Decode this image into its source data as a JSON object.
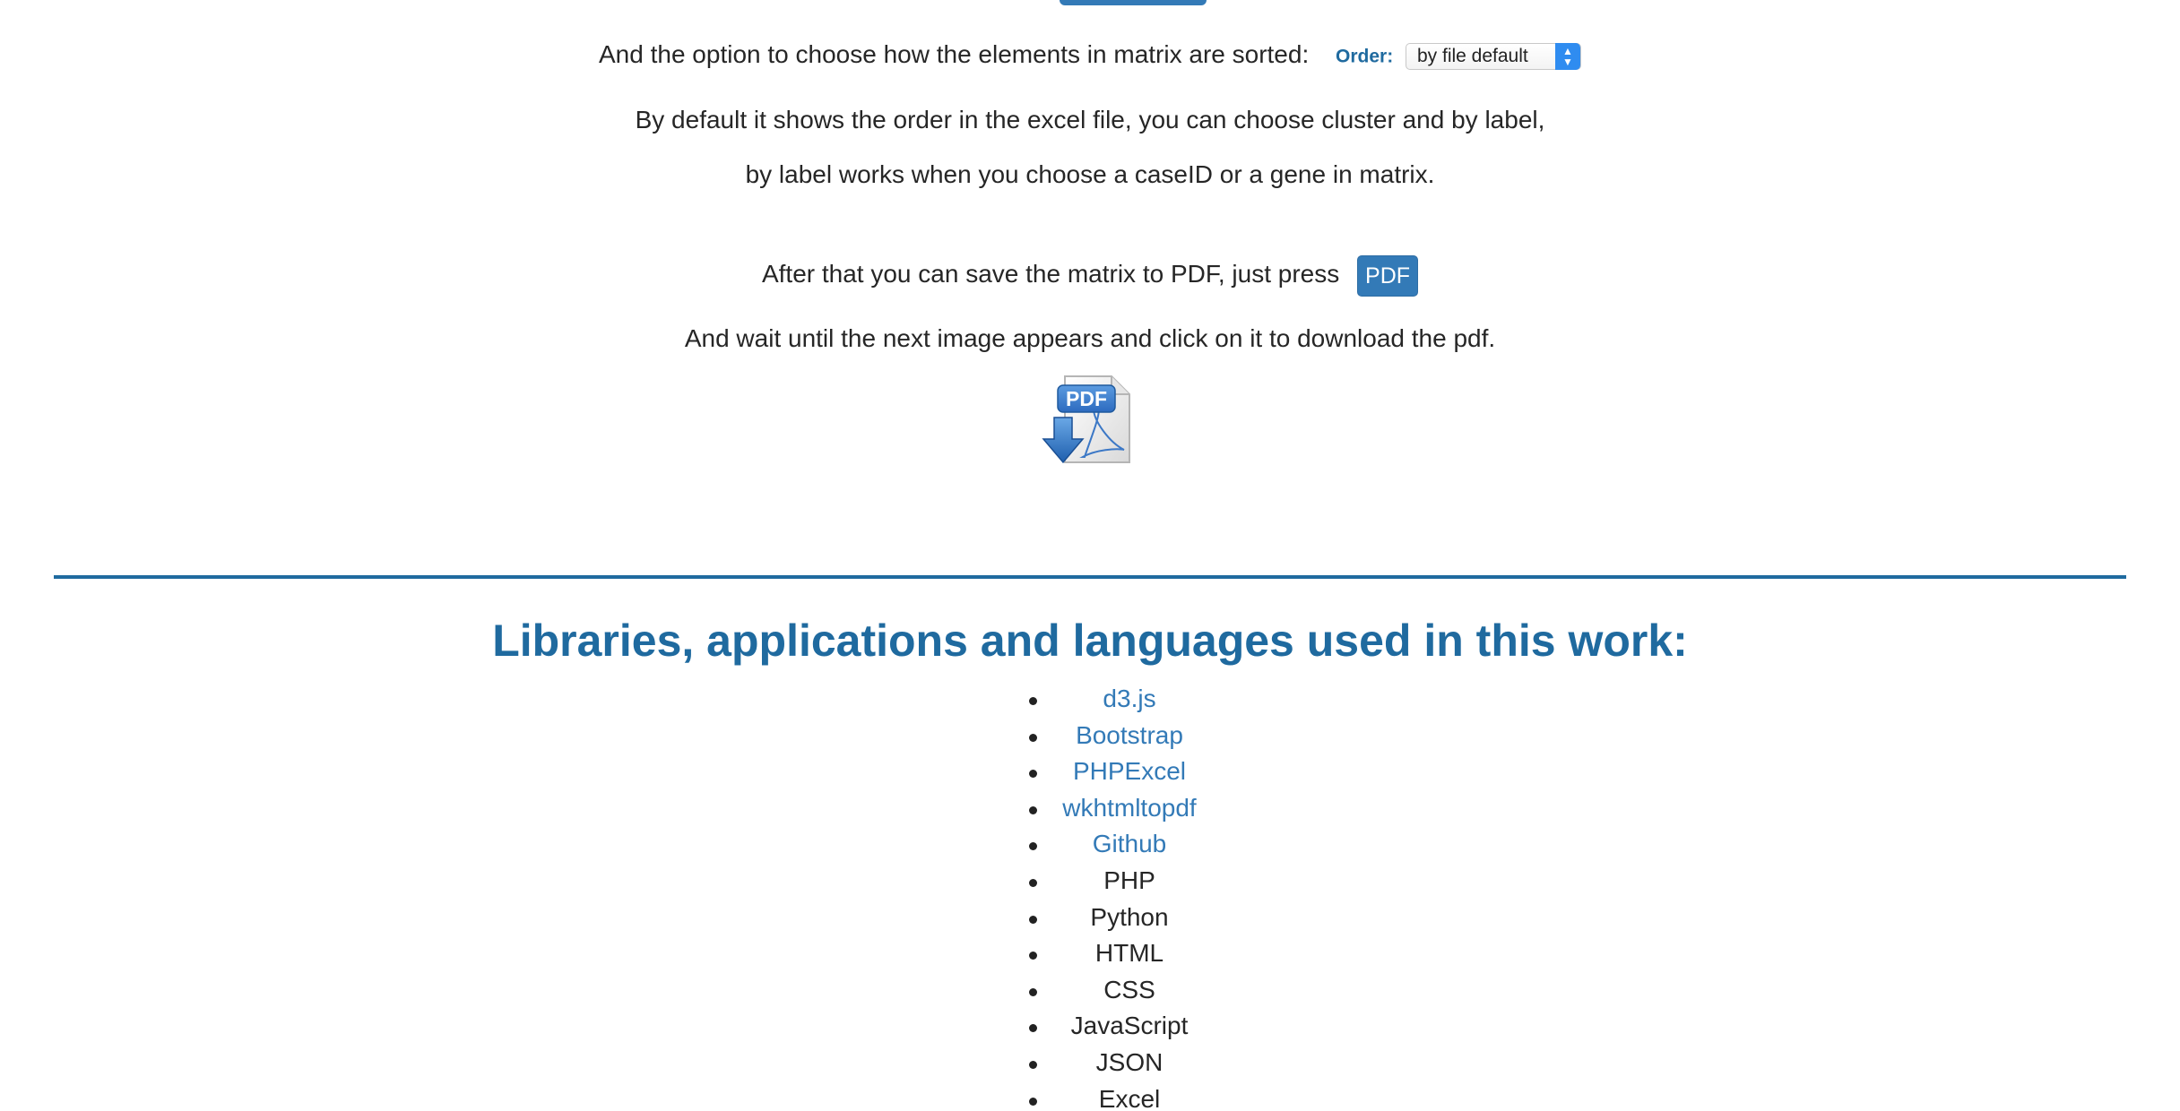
{
  "order_line": {
    "text": "And the option to choose how the elements in matrix are sorted:",
    "label": "Order:",
    "selected": "by file default"
  },
  "info": {
    "line1": "By default it shows the order in the excel file, you can choose cluster and by label,",
    "line2": "by label works when you choose a caseID or a gene in matrix."
  },
  "save": {
    "text": "After that you can save the matrix to PDF, just press",
    "button_label": "PDF"
  },
  "wait": {
    "text": "And wait until the next image appears and click on it to download the pdf."
  },
  "pdf_icon": {
    "icon": "pdf-download-icon",
    "badge": "PDF"
  },
  "libraries": {
    "heading": "Libraries, applications and languages used in this work:",
    "links": [
      "d3.js",
      "Bootstrap",
      "PHPExcel",
      "wkhtmltopdf",
      "Github"
    ],
    "items": [
      "PHP",
      "Python",
      "HTML",
      "CSS",
      "JavaScript",
      "JSON",
      "Excel"
    ]
  },
  "colors": {
    "accent": "#1f6a9f",
    "link": "#337ab7",
    "button": "#337ab7"
  }
}
